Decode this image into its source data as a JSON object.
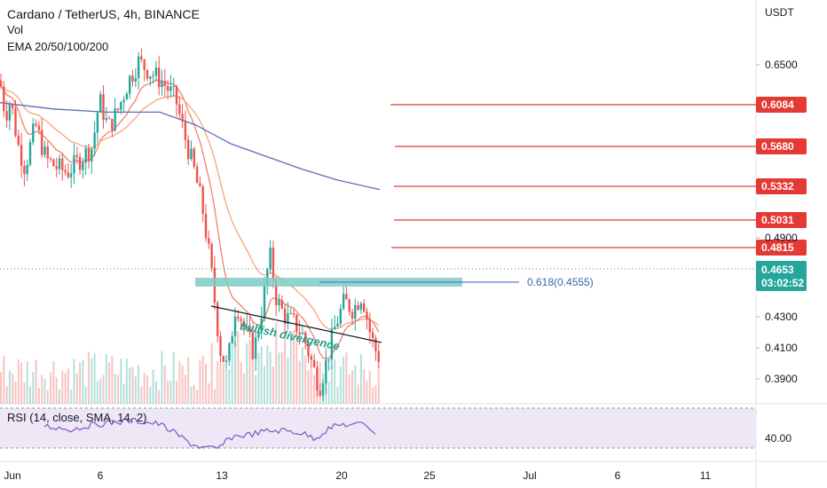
{
  "header": {
    "symbol": "Cardano / TetherUS, 4h, BINANCE",
    "vol": "Vol",
    "ema": "EMA 20/50/100/200"
  },
  "currency": "USDT",
  "price_ticks": [
    "0.6500",
    "0.4900",
    "0.4300",
    "0.4100",
    "0.3900"
  ],
  "time_ticks": [
    "Jun",
    "6",
    "13",
    "20",
    "25",
    "Jul",
    "6",
    "11"
  ],
  "colors": {
    "up": "#26a69a",
    "down": "#ef5350",
    "ema_fast": "#f0826a",
    "ema_mid": "#f8a57d",
    "ema_slow": "#5b6dbd",
    "resistance": "#e53935",
    "fib_zone": "#80cbc4",
    "fib_line": "#5a7fcf",
    "rsi_line": "#7e57c2",
    "rsi_band": "#ede7f6"
  },
  "resistance_levels": [
    {
      "label": "0.6084"
    },
    {
      "label": "0.5680"
    },
    {
      "label": "0.5332"
    },
    {
      "label": "0.5031"
    },
    {
      "label": "0.4815"
    }
  ],
  "current_price": {
    "label": "0.4653",
    "countdown": "03:02:52"
  },
  "fib": {
    "label": "0.618(0.4555)"
  },
  "annotation": {
    "text": "bullish divergence"
  },
  "rsi": {
    "title": "RSI (14, close, SMA, 14, 2)",
    "level_label": "40.00"
  },
  "chart_data": {
    "type": "candlestick",
    "title": "Cardano / TetherUS, 4h, BINANCE",
    "price_axis": {
      "unit": "USDT",
      "ticks": [
        0.65,
        0.49,
        0.43,
        0.41,
        0.39
      ]
    },
    "x_axis": {
      "ticks": [
        "Jun",
        "6",
        "13",
        "20",
        "25",
        "Jul",
        "6",
        "11"
      ]
    },
    "horizontal_levels": [
      0.6084,
      0.568,
      0.5332,
      0.5031,
      0.4815
    ],
    "current_price": 0.4653,
    "fib_level": {
      "ratio": 0.618,
      "price": 0.4555
    },
    "indicators": [
      "Vol",
      "EMA 20/50/100/200",
      "RSI (14, close, SMA, 14, 2)"
    ],
    "annotations": [
      "bullish divergence"
    ]
  }
}
